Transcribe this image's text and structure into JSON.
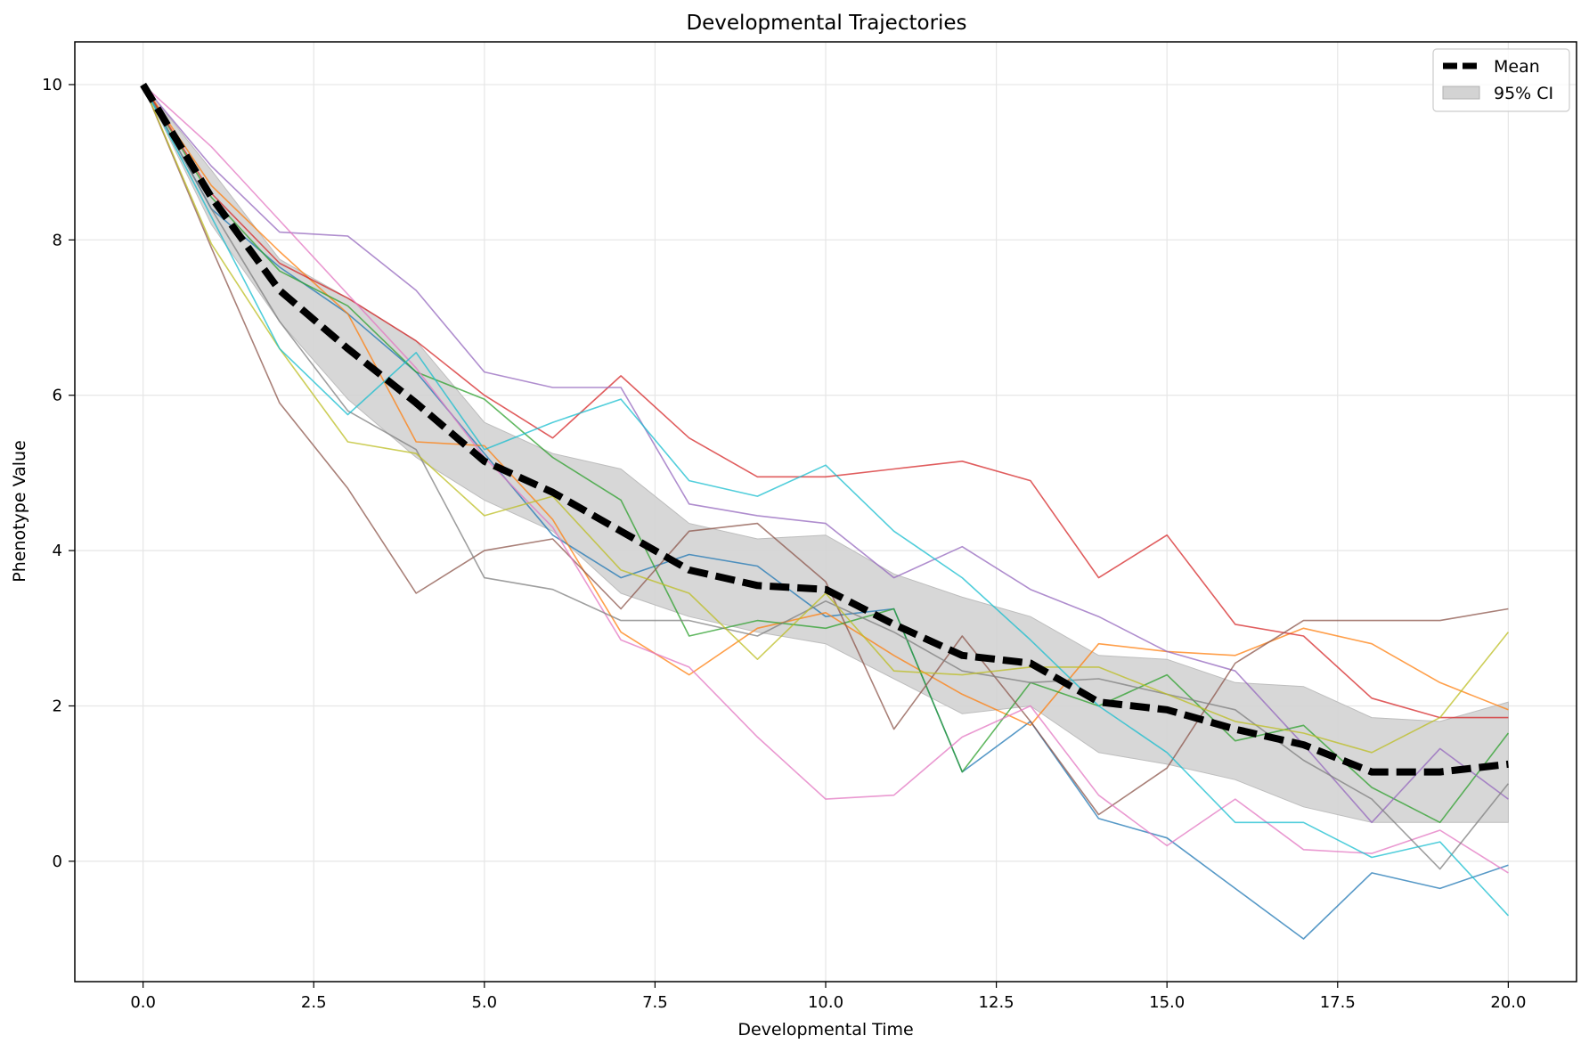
{
  "chart_data": {
    "type": "line",
    "title": "Developmental Trajectories",
    "xlabel": "Developmental Time",
    "ylabel": "Phenotype Value",
    "xlim": [
      -1.0,
      21.0
    ],
    "ylim": [
      -1.55,
      10.55
    ],
    "xticks": [
      0.0,
      2.5,
      5.0,
      7.5,
      10.0,
      12.5,
      15.0,
      17.5,
      20.0
    ],
    "xtick_labels": [
      "0.0",
      "2.5",
      "5.0",
      "7.5",
      "10.0",
      "12.5",
      "15.0",
      "17.5",
      "20.0"
    ],
    "yticks": [
      0,
      2,
      4,
      6,
      8,
      10
    ],
    "ytick_labels": [
      "0",
      "2",
      "4",
      "6",
      "8",
      "10"
    ],
    "grid": true,
    "legend_position": "top-right",
    "x": [
      0,
      1,
      2,
      3,
      4,
      5,
      6,
      7,
      8,
      9,
      10,
      11,
      12,
      13,
      14,
      15,
      16,
      17,
      18,
      19,
      20
    ],
    "series": [
      {
        "color": "#1f77b4",
        "values": [
          10.0,
          8.4,
          7.65,
          7.05,
          6.3,
          5.25,
          4.2,
          3.65,
          3.95,
          3.8,
          3.15,
          3.25,
          1.15,
          1.8,
          0.55,
          0.3,
          -0.35,
          -1.0,
          -0.15,
          -0.35,
          -0.05
        ]
      },
      {
        "color": "#ff7f0e",
        "values": [
          10.0,
          8.7,
          7.85,
          7.05,
          5.4,
          5.35,
          4.4,
          2.95,
          2.4,
          3.0,
          3.2,
          2.65,
          2.15,
          1.75,
          2.8,
          2.7,
          2.65,
          3.0,
          2.8,
          2.3,
          1.95
        ]
      },
      {
        "color": "#2ca02c",
        "values": [
          10.0,
          8.55,
          7.6,
          7.15,
          6.3,
          5.95,
          5.2,
          4.65,
          2.9,
          3.1,
          3.0,
          3.25,
          1.15,
          2.3,
          2.0,
          2.4,
          1.55,
          1.75,
          0.95,
          0.5,
          1.65
        ]
      },
      {
        "color": "#d62728",
        "values": [
          10.0,
          8.6,
          7.7,
          7.25,
          6.7,
          6.0,
          5.45,
          6.25,
          5.45,
          4.95,
          4.95,
          5.05,
          5.15,
          4.9,
          3.65,
          4.2,
          3.05,
          2.9,
          2.1,
          1.85,
          1.85
        ]
      },
      {
        "color": "#9467bd",
        "values": [
          10.0,
          8.95,
          8.1,
          8.05,
          7.35,
          6.3,
          6.1,
          6.1,
          4.6,
          4.45,
          4.35,
          3.65,
          4.05,
          3.5,
          3.15,
          2.7,
          2.45,
          1.5,
          0.5,
          1.45,
          0.8
        ]
      },
      {
        "color": "#8c564b",
        "values": [
          10.0,
          7.9,
          5.9,
          4.8,
          3.45,
          4.0,
          4.15,
          3.25,
          4.25,
          4.35,
          3.6,
          1.7,
          2.9,
          1.8,
          0.6,
          1.2,
          2.55,
          3.1,
          3.1,
          3.1,
          3.25
        ]
      },
      {
        "color": "#e377c2",
        "values": [
          10.0,
          9.2,
          8.25,
          7.3,
          6.35,
          5.2,
          4.3,
          2.85,
          2.5,
          1.6,
          0.8,
          0.85,
          1.6,
          2.0,
          0.85,
          0.2,
          0.8,
          0.15,
          0.1,
          0.4,
          -0.15
        ]
      },
      {
        "color": "#7f7f7f",
        "values": [
          10.0,
          8.4,
          6.95,
          5.8,
          5.3,
          3.65,
          3.5,
          3.1,
          3.1,
          2.9,
          3.35,
          2.95,
          2.45,
          2.3,
          2.35,
          2.15,
          1.95,
          1.3,
          0.8,
          -0.1,
          1.0
        ]
      },
      {
        "color": "#bcbd22",
        "values": [
          10.0,
          7.95,
          6.6,
          5.4,
          5.25,
          4.45,
          4.7,
          3.75,
          3.45,
          2.6,
          3.45,
          2.45,
          2.4,
          2.5,
          2.5,
          2.15,
          1.8,
          1.65,
          1.4,
          1.85,
          2.95
        ]
      },
      {
        "color": "#17becf",
        "values": [
          10.0,
          8.3,
          6.6,
          5.75,
          6.55,
          5.3,
          5.65,
          5.95,
          4.9,
          4.7,
          5.1,
          4.25,
          3.65,
          2.85,
          2.0,
          1.4,
          0.5,
          0.5,
          0.05,
          0.25,
          -0.7
        ]
      }
    ],
    "mean": {
      "name": "Mean",
      "color": "#000000",
      "values": [
        10.0,
        8.55,
        7.35,
        6.6,
        5.9,
        5.15,
        4.75,
        4.25,
        3.75,
        3.55,
        3.5,
        3.05,
        2.65,
        2.55,
        2.05,
        1.95,
        1.7,
        1.5,
        1.15,
        1.15,
        1.25
      ]
    },
    "ci": {
      "name": "95% CI",
      "color": "#d3d3d3",
      "upper": [
        10.0,
        8.9,
        7.75,
        7.25,
        6.7,
        5.65,
        5.25,
        5.05,
        4.35,
        4.15,
        4.2,
        3.7,
        3.4,
        3.15,
        2.65,
        2.6,
        2.3,
        2.25,
        1.85,
        1.8,
        2.05
      ],
      "lower": [
        10.0,
        8.2,
        6.95,
        5.95,
        5.2,
        4.65,
        4.25,
        3.45,
        3.15,
        2.95,
        2.8,
        2.35,
        1.9,
        2.0,
        1.4,
        1.25,
        1.05,
        0.7,
        0.5,
        0.5,
        0.5
      ]
    }
  }
}
